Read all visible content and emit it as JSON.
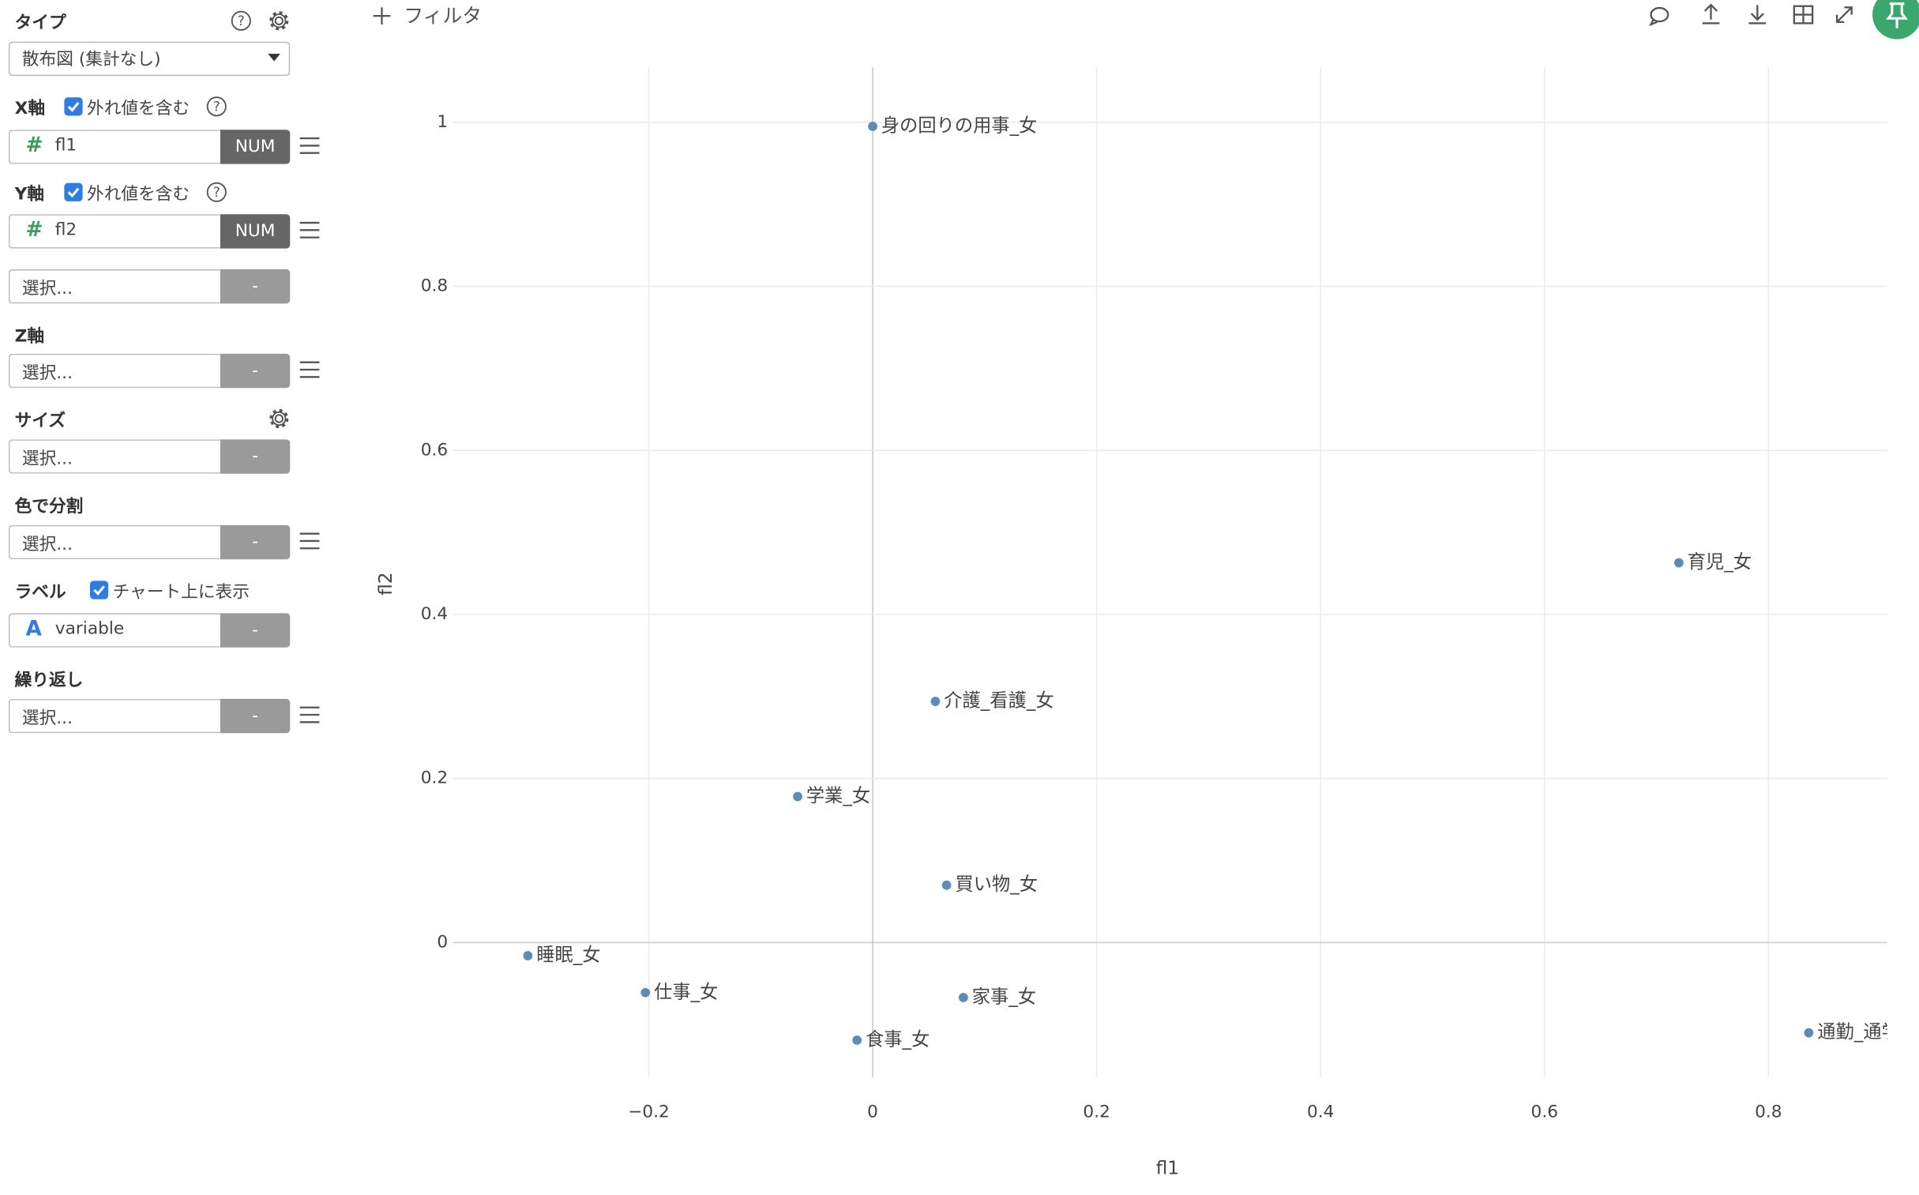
{
  "sidebar": {
    "type_section": {
      "label": "タイプ",
      "value": "散布図 (集計なし)"
    },
    "help_icon": "?",
    "x_axis": {
      "label": "X軸",
      "checkbox": "外れ値を含む",
      "icon": "#",
      "field": "fl1",
      "badge": "NUM"
    },
    "y_axis": {
      "label": "Y軸",
      "checkbox": "外れ値を含む",
      "icon": "#",
      "field": "fl2",
      "badge": "NUM"
    },
    "extra": {
      "field": "選択...",
      "badge": "-"
    },
    "z_axis": {
      "label": "Z軸",
      "field": "選択...",
      "badge": "-"
    },
    "size": {
      "label": "サイズ",
      "field": "選択...",
      "badge": "-"
    },
    "color": {
      "label": "色で分割",
      "field": "選択...",
      "badge": "-"
    },
    "label": {
      "label": "ラベル",
      "checkbox": "チャート上に表示",
      "icon": "A",
      "field": "variable",
      "badge": "-"
    },
    "repeat": {
      "label": "繰り返し",
      "field": "選択...",
      "badge": "-"
    }
  },
  "toolbar": {
    "filter": "フィルタ"
  },
  "chart_data": {
    "type": "scatter",
    "x_label": "fl1",
    "y_label": "fl2",
    "color": "#5b8db8",
    "labels": [
      "身の回りの用事_女",
      "育児_女",
      "介護_看護_女",
      "学業_女",
      "買い物_女",
      "睡眠_女",
      "仕事_女",
      "家事_女",
      "食事_女",
      "通勤_通学_女"
    ],
    "x": [
      0.0,
      0.72,
      0.056,
      -0.067,
      0.066,
      -0.308,
      -0.203,
      0.081,
      -0.014,
      0.836
    ],
    "y": [
      0.995,
      0.463,
      0.294,
      0.178,
      0.07,
      -0.016,
      -0.061,
      -0.067,
      -0.119,
      -0.11
    ],
    "xlim": [
      -0.375,
      0.906
    ],
    "ylim": [
      -0.164,
      1.067
    ],
    "xticks": [
      {
        "value": -0.2,
        "label": "−0.2"
      },
      0,
      0.2,
      0.4,
      0.6,
      0.8
    ],
    "yticks": [
      0,
      0.2,
      0.4,
      0.6,
      0.8,
      1
    ],
    "grid": true
  }
}
